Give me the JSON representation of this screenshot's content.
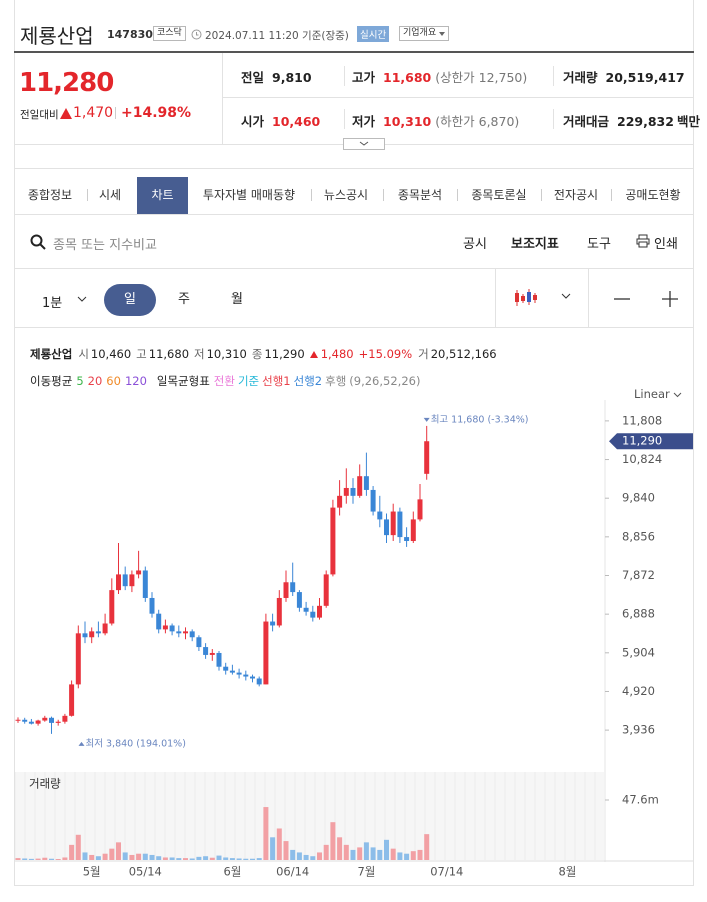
{
  "header": {
    "name": "제룡산업",
    "code": "147830",
    "market": "코스닥",
    "time": "2024.07.11 11:20 기준(장중)",
    "realtime": "실시간",
    "company_button": "기업개요"
  },
  "quote": {
    "price": "11,280",
    "change_label": "전일대비",
    "change": "1,470",
    "change_pct": "+14.98%",
    "stats": [
      {
        "label": "전일",
        "value": "9,810",
        "color": "#222222"
      },
      {
        "label": "고가",
        "value": "11,680",
        "note": "(상한가 12,750)",
        "color": "#e3262b"
      },
      {
        "label": "거래량",
        "value": "20,519,417",
        "color": "#222222"
      },
      {
        "label": "시가",
        "value": "10,460",
        "color": "#e3262b"
      },
      {
        "label": "저가",
        "value": "10,310",
        "note": "(하한가 6,870)",
        "color": "#e3262b"
      },
      {
        "label": "거래대금",
        "value": "229,832",
        "unit": "백만",
        "color": "#222222"
      }
    ]
  },
  "tabs": {
    "items": [
      "종합정보",
      "시세",
      "차트",
      "투자자별 매매동향",
      "뉴스공시",
      "종목분석",
      "종목토론실",
      "전자공시",
      "공매도현황"
    ],
    "active": 2
  },
  "toolbar": {
    "search_placeholder": "종목 또는 지수비교",
    "buttons": [
      "공시",
      "보조지표",
      "도구",
      "인쇄"
    ]
  },
  "period": {
    "interval": "1분",
    "items": [
      "일",
      "주",
      "월"
    ],
    "active": 0
  },
  "chart_info": {
    "name": "제룡산업",
    "items": [
      {
        "label": "시",
        "value": "10,460"
      },
      {
        "label": "고",
        "value": "11,680"
      },
      {
        "label": "저",
        "value": "10,310"
      },
      {
        "label": "종",
        "value": "11,290"
      }
    ],
    "change": "1,480",
    "change_pct": "+15.09%",
    "volume_label": "거",
    "volume": "20,512,166"
  },
  "legend": {
    "ma_label": "이동평균",
    "ma": [
      {
        "name": "5",
        "color": "#3cb54a"
      },
      {
        "name": "20",
        "color": "#e8414a"
      },
      {
        "name": "60",
        "color": "#f08a28"
      },
      {
        "name": "120",
        "color": "#8a4fd8"
      }
    ],
    "ichimoku_label": "일목균형표",
    "ichimoku": [
      {
        "name": "전환",
        "color": "#e978d8"
      },
      {
        "name": "기준",
        "color": "#27b8d8"
      },
      {
        "name": "선행1",
        "color": "#e8414a"
      },
      {
        "name": "선행2",
        "color": "#3a86d6"
      },
      {
        "name": "후행",
        "color": "#888888"
      }
    ],
    "ichimoku_params": "(9,26,52,26)"
  },
  "scale_mode": "Linear",
  "chart": {
    "type": "candlestick",
    "categories": [
      null,
      null,
      null,
      null,
      null,
      null,
      null,
      null,
      null,
      null,
      null,
      "5월",
      null,
      null,
      null,
      null,
      null,
      null,
      null,
      "05/14",
      null,
      null,
      null,
      null,
      null,
      null,
      null,
      null,
      null,
      null,
      null,
      null,
      "6월",
      null,
      null,
      null,
      null,
      null,
      null,
      null,
      null,
      "06/14",
      null,
      null,
      null,
      null,
      null,
      null,
      null,
      null,
      null,
      null,
      "7월",
      null,
      null,
      null,
      null,
      null,
      null,
      null,
      null,
      null,
      null,
      null,
      "07/14",
      null,
      null,
      null,
      null,
      null,
      null,
      null,
      null,
      null,
      null,
      null,
      null,
      null,
      null,
      null,
      null,
      null,
      "8월",
      null,
      null,
      null,
      null,
      null
    ],
    "open": [
      4180,
      4200,
      4150,
      4100,
      4180,
      4250,
      4120,
      4150,
      4300,
      5100,
      6400,
      6300,
      6450,
      6400,
      6650,
      7500,
      7900,
      7600,
      7900,
      8000,
      7300,
      6900,
      6500,
      6600,
      6450,
      6400,
      6450,
      6300,
      6050,
      5850,
      5900,
      5550,
      5450,
      5400,
      5350,
      5300,
      5250,
      5100,
      6700,
      6600,
      7300,
      7700,
      7450,
      7050,
      6950,
      6800,
      7100,
      7900,
      9600,
      9900,
      10100,
      9900,
      10400,
      10050,
      9500,
      9300,
      8900,
      9500,
      8850,
      8750,
      9300,
      10460,
      null,
      null,
      null,
      null,
      null,
      null,
      null,
      null,
      null,
      null,
      null,
      null,
      null,
      null,
      null,
      null,
      null,
      null,
      null,
      null,
      null,
      null,
      null,
      null,
      null,
      null
    ],
    "high": [
      4260,
      4250,
      4220,
      4200,
      4300,
      4280,
      4200,
      4350,
      5200,
      6600,
      6700,
      6550,
      6700,
      6900,
      7800,
      8700,
      8100,
      8000,
      8500,
      8100,
      7450,
      7000,
      6750,
      6650,
      6600,
      6550,
      6500,
      6350,
      6150,
      6000,
      5950,
      5650,
      5600,
      5500,
      5450,
      5350,
      5300,
      6900,
      6900,
      7500,
      8000,
      8200,
      7500,
      7200,
      7100,
      7300,
      8000,
      9800,
      10300,
      10600,
      10350,
      10700,
      11000,
      10150,
      9900,
      9450,
      9700,
      9600,
      9100,
      9500,
      10200,
      11680,
      null,
      null,
      null,
      null,
      null,
      null,
      null,
      null,
      null,
      null,
      null,
      null,
      null,
      null,
      null,
      null,
      null,
      null,
      null,
      null,
      null,
      null,
      null,
      null,
      null,
      null
    ],
    "low": [
      4120,
      4100,
      4080,
      4050,
      4150,
      3840,
      4050,
      4100,
      4280,
      5000,
      6150,
      6150,
      6300,
      6350,
      6600,
      7400,
      7500,
      7450,
      7800,
      7200,
      6800,
      6400,
      6400,
      6350,
      6300,
      6250,
      6200,
      5950,
      5750,
      5700,
      5450,
      5350,
      5350,
      5250,
      5200,
      5150,
      5050,
      5100,
      6450,
      6550,
      7200,
      7350,
      6950,
      6850,
      6700,
      6750,
      7050,
      7850,
      9400,
      9700,
      9700,
      9850,
      9900,
      9400,
      9100,
      8700,
      8750,
      8700,
      8600,
      8700,
      9250,
      10310,
      null,
      null,
      null,
      null,
      null,
      null,
      null,
      null,
      null,
      null,
      null,
      null,
      null,
      null,
      null,
      null,
      null,
      null,
      null,
      null,
      null,
      null,
      null,
      null,
      null,
      null
    ],
    "close": [
      4200,
      4150,
      4100,
      4180,
      4250,
      4120,
      4150,
      4300,
      5100,
      6400,
      6300,
      6450,
      6400,
      6650,
      7500,
      7900,
      7600,
      7900,
      8000,
      7300,
      6900,
      6500,
      6600,
      6450,
      6400,
      6450,
      6300,
      6050,
      5850,
      5900,
      5550,
      5450,
      5400,
      5350,
      5300,
      5250,
      5100,
      6700,
      6600,
      7300,
      7700,
      7450,
      7050,
      6950,
      6800,
      7100,
      7900,
      9600,
      9900,
      10100,
      9900,
      10400,
      10050,
      9500,
      9300,
      8900,
      9500,
      8850,
      8750,
      9300,
      9810,
      11290,
      null,
      null,
      null,
      null,
      null,
      null,
      null,
      null,
      null,
      null,
      null,
      null,
      null,
      null,
      null,
      null,
      null,
      null,
      null,
      null,
      null,
      null,
      null,
      null,
      null,
      null
    ],
    "volume": [
      1500000,
      1200000,
      900000,
      1100000,
      1800000,
      1000000,
      800000,
      2000000,
      12000000,
      20000000,
      6000000,
      4000000,
      3000000,
      5000000,
      9000000,
      14000000,
      6000000,
      4000000,
      5000000,
      5000000,
      4000000,
      3000000,
      2000000,
      2000000,
      1500000,
      1500000,
      1200000,
      2500000,
      3000000,
      1800000,
      3500000,
      2000000,
      1500000,
      1200000,
      1000000,
      1000000,
      1500000,
      42000000,
      18000000,
      25000000,
      15000000,
      8000000,
      6000000,
      4000000,
      3000000,
      6000000,
      12000000,
      30000000,
      18000000,
      12000000,
      8000000,
      10000000,
      14000000,
      10000000,
      8000000,
      16000000,
      9000000,
      6000000,
      5000000,
      7000000,
      8000000,
      20512166,
      null,
      null,
      null,
      null,
      null,
      null,
      null,
      null,
      null,
      null,
      null,
      null,
      null,
      null,
      null,
      null,
      null,
      null,
      null,
      null,
      null,
      null,
      null,
      null,
      null,
      null
    ],
    "ylim": [
      3430,
      12085
    ],
    "yticks": [
      {
        "value": 3936,
        "label": "3,936"
      },
      {
        "value": 4920,
        "label": "4,920"
      },
      {
        "value": 5904,
        "label": "5,904"
      },
      {
        "value": 6888,
        "label": "6,888"
      },
      {
        "value": 7872,
        "label": "7,872"
      },
      {
        "value": 8856,
        "label": "8,856"
      },
      {
        "value": 9840,
        "label": "9,840"
      },
      {
        "value": 10824,
        "label": "10,824"
      },
      {
        "value": 11808,
        "label": "11,808"
      }
    ],
    "last_price": {
      "value": 11290,
      "label": "11,290"
    },
    "max_annotation": {
      "value": 11680,
      "label": "최고 11,680 (-3.34%)"
    },
    "min_annotation": {
      "value": 3840,
      "label": "최저 3,840 (194.01%)"
    },
    "volume_title": "거래량",
    "volume_ylim": [
      0,
      69800000
    ],
    "volume_yticks": [
      {
        "value": 47600000,
        "label": "47.6m"
      }
    ],
    "up_color": "#e8323c",
    "down_color": "#3a86d6",
    "volume_up_color": "#f2a0a4",
    "volume_down_color": "#8cbde9"
  }
}
